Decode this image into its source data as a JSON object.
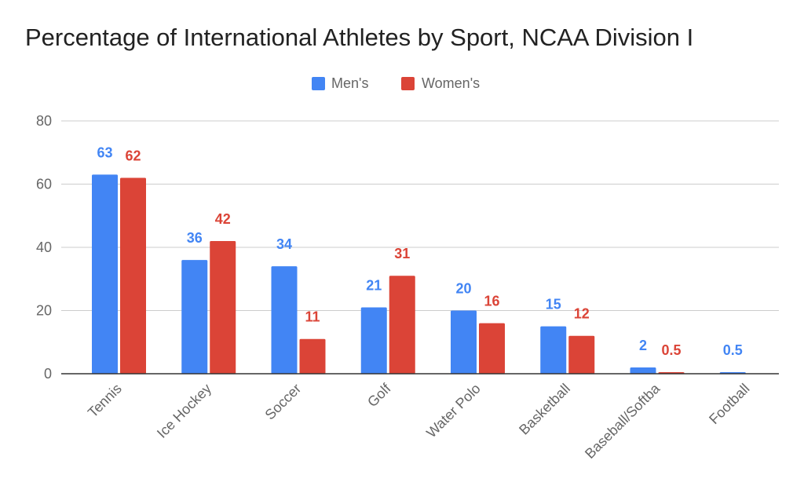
{
  "chart_data": {
    "type": "bar",
    "title": "Percentage of International Athletes by Sport, NCAA Division I",
    "categories": [
      "Tennis",
      "Ice Hockey",
      "Soccer",
      "Golf",
      "Water Polo",
      "Basketball",
      "Baseball/Softba",
      "Football"
    ],
    "series": [
      {
        "name": "Men's",
        "color": "#4285f4",
        "values": [
          63,
          36,
          34,
          21,
          20,
          15,
          2,
          0.5
        ],
        "labels": [
          "63",
          "36",
          "34",
          "21",
          "20",
          "15",
          "2",
          "0.5"
        ]
      },
      {
        "name": "Women's",
        "color": "#db4437",
        "values": [
          62,
          42,
          11,
          31,
          16,
          12,
          0.5,
          null
        ],
        "labels": [
          "62",
          "42",
          "11",
          "31",
          "16",
          "12",
          "0.5",
          ""
        ]
      }
    ],
    "ylim": [
      0,
      80
    ],
    "yticks": [
      0,
      20,
      40,
      60,
      80
    ],
    "grid": true,
    "legend_position": "top"
  }
}
